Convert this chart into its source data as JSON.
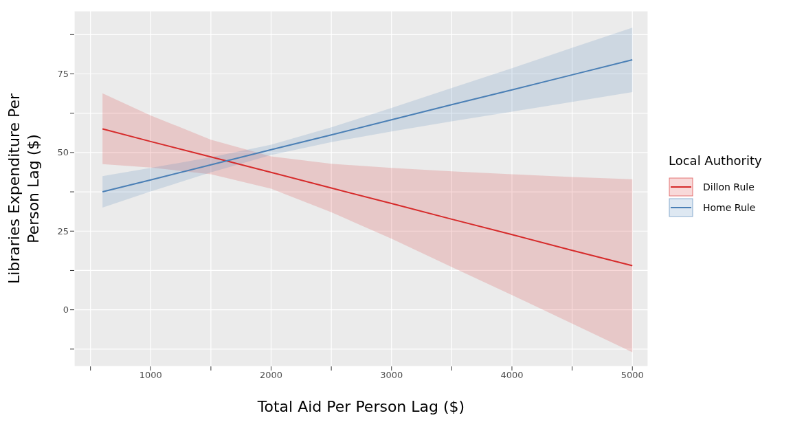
{
  "chart_data": {
    "type": "line",
    "xlabel": "Total Aid Per Person Lag ($)",
    "ylabel": "Libraries Expenditure Per Person Lag ($)",
    "legend_title": "Local Authority",
    "legend": "right",
    "grid": true,
    "line_style": "solid",
    "marker": "none",
    "x": [
      600,
      1000,
      1500,
      2000,
      2500,
      3000,
      3500,
      4000,
      4500,
      5000
    ],
    "xlim": [
      365,
      5130
    ],
    "ylim": [
      -18,
      95
    ],
    "xticks": [
      {
        "value": 500,
        "label": null
      },
      1000,
      {
        "value": 1500,
        "label": null
      },
      2000,
      {
        "value": 2500,
        "label": null
      },
      3000,
      {
        "value": 3500,
        "label": null
      },
      4000,
      {
        "value": 4500,
        "label": null
      },
      5000
    ],
    "yticks": [
      {
        "value": -12.5,
        "label": null
      },
      0,
      {
        "value": 12.5,
        "label": null
      },
      25,
      {
        "value": 37.5,
        "label": null
      },
      50,
      {
        "value": 62.5,
        "label": null
      },
      75,
      {
        "value": 87.5,
        "label": null
      }
    ],
    "series": [
      {
        "name": "Dillon Rule",
        "color": "#d62a2a",
        "values": [
          57.5,
          53.5,
          48.6,
          43.7,
          38.7,
          33.8,
          28.8,
          23.9,
          18.9,
          14
        ],
        "lower": [
          46.3,
          45.2,
          43.1,
          38.5,
          31,
          22.6,
          13.6,
          4.7,
          -4.4,
          -13.5
        ],
        "upper": [
          68.8,
          61.8,
          54.1,
          48.8,
          46.4,
          45.1,
          44,
          43.1,
          42.2,
          41.5
        ]
      },
      {
        "name": "Home Rule",
        "color": "#4a7fb5",
        "values": [
          37.5,
          41.3,
          46.1,
          50.9,
          55.6,
          60.4,
          65.2,
          69.9,
          74.7,
          79.5
        ],
        "lower": [
          32.5,
          37.6,
          43.7,
          49.2,
          53.3,
          56.7,
          59.9,
          63,
          66.1,
          69.2
        ],
        "upper": [
          42.5,
          45.1,
          48.5,
          52.5,
          58,
          64.2,
          70.5,
          76.8,
          83.3,
          89.7
        ]
      }
    ]
  }
}
